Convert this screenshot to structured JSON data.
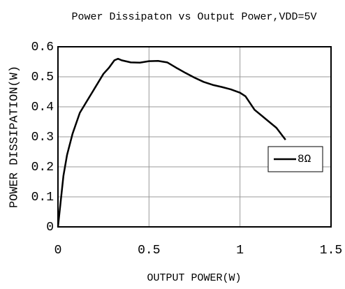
{
  "chart_data": {
    "type": "line",
    "title": "Power Dissipaton vs Output Power,VDD=5V",
    "x_label": "OUTPUT POWER(W)",
    "y_label": "POWER DISSIPATION(W)",
    "x": [
      0,
      0.03,
      0.05,
      0.08,
      0.12,
      0.16,
      0.2,
      0.25,
      0.28,
      0.31,
      0.33,
      0.35,
      0.4,
      0.45,
      0.5,
      0.55,
      0.6,
      0.65,
      0.7,
      0.75,
      0.8,
      0.85,
      0.9,
      0.95,
      1.0,
      1.03,
      1.08,
      1.12,
      1.15,
      1.2,
      1.25
    ],
    "series": [
      {
        "name": "8Ω",
        "color": "#000000",
        "values": [
          0,
          0.17,
          0.24,
          0.31,
          0.38,
          0.42,
          0.46,
          0.51,
          0.53,
          0.555,
          0.56,
          0.555,
          0.548,
          0.547,
          0.552,
          0.553,
          0.548,
          0.53,
          0.513,
          0.497,
          0.483,
          0.473,
          0.466,
          0.458,
          0.447,
          0.435,
          0.39,
          0.37,
          0.355,
          0.33,
          0.29
        ]
      }
    ],
    "xlim": [
      0,
      1.5
    ],
    "xticks": [
      0,
      0.5,
      1,
      1.5
    ],
    "ylim": [
      0,
      0.6
    ],
    "yticks": [
      0,
      0.1,
      0.2,
      0.3,
      0.4,
      0.5,
      0.6
    ],
    "grid": true,
    "legend": "right"
  }
}
